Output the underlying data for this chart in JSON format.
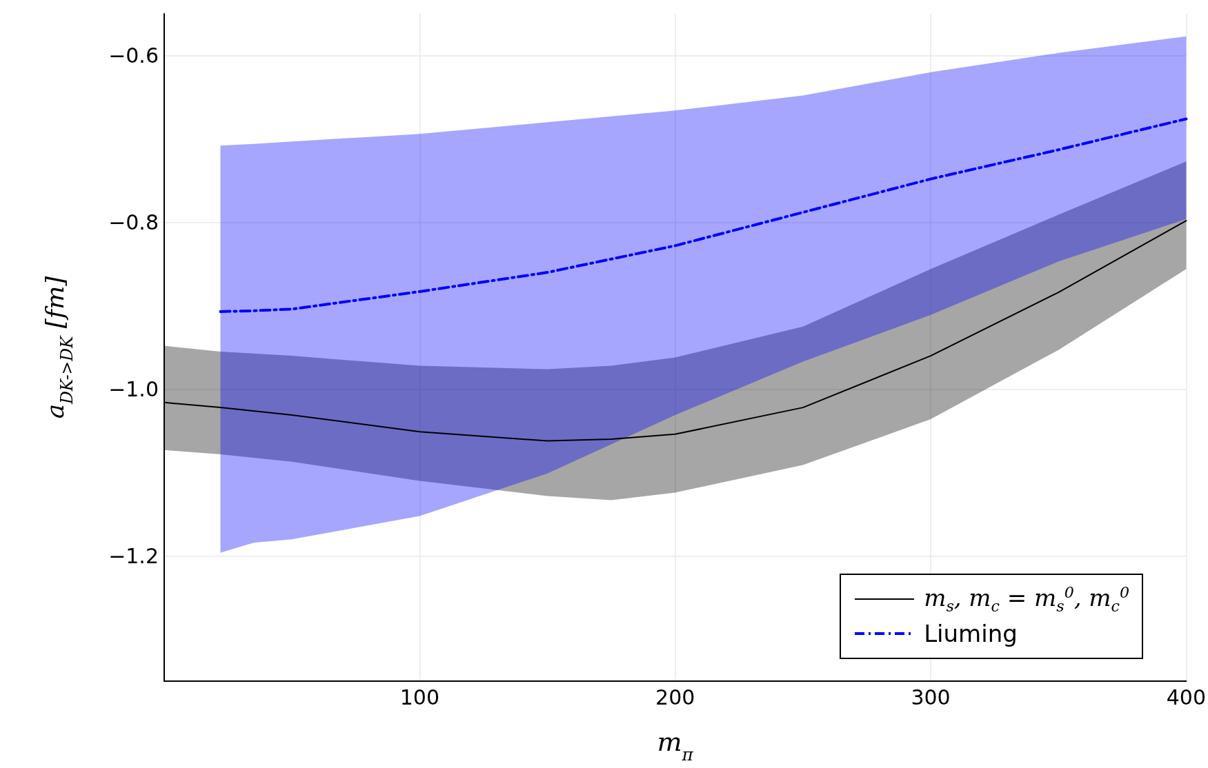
{
  "chart_data": {
    "type": "line",
    "xlabel": "m$_{π}$",
    "ylabel": "a$_{DK->DK}$ [fm]",
    "xlim": [
      0,
      400
    ],
    "xticks": [
      100,
      200,
      300,
      400
    ],
    "ylim": [
      -1.35,
      -0.55
    ],
    "yticks": [
      {
        "value": -0.6,
        "label": "−0.6"
      },
      {
        "value": -0.8,
        "label": "−0.8"
      },
      {
        "value": -1.0,
        "label": "−1.0"
      },
      {
        "value": -1.2,
        "label": "−1.2"
      }
    ],
    "grid": true,
    "legend": "bottom right",
    "marker": "none",
    "series": [
      {
        "name": "m$_{s}$, m$_{c}$ = m$_{s}$$^{0}$, m$_{c}$$^{0}$",
        "color": "#000000",
        "line_style": "solid",
        "x": [
          0,
          22,
          50,
          100,
          150,
          175,
          200,
          250,
          300,
          350,
          400
        ],
        "values": [
          -1.016,
          -1.022,
          -1.031,
          -1.051,
          -1.062,
          -1.06,
          -1.054,
          -1.022,
          -0.96,
          -0.884,
          -0.798
        ],
        "lower": [
          -1.073,
          -1.078,
          -1.087,
          -1.11,
          -1.128,
          -1.133,
          -1.124,
          -1.091,
          -1.036,
          -0.953,
          -0.856
        ],
        "upper": [
          -0.948,
          -0.955,
          -0.96,
          -0.972,
          -0.976,
          -0.972,
          -0.962,
          -0.925,
          -0.856,
          -0.791,
          -0.727
        ]
      },
      {
        "name": "Liuming",
        "color": "#0000ff",
        "line_style": "dashed",
        "x": [
          22,
          35,
          50,
          100,
          150,
          200,
          250,
          300,
          350,
          400
        ],
        "values": [
          -0.907,
          -0.906,
          -0.904,
          -0.883,
          -0.86,
          -0.828,
          -0.788,
          -0.748,
          -0.713,
          -0.676
        ],
        "lower": [
          -1.196,
          -1.184,
          -1.18,
          -1.152,
          -1.101,
          -1.031,
          -0.967,
          -0.911,
          -0.847,
          -0.796
        ],
        "upper": [
          -0.708,
          -0.706,
          -0.703,
          -0.694,
          -0.68,
          -0.666,
          -0.648,
          -0.62,
          -0.597,
          -0.577
        ]
      }
    ]
  }
}
